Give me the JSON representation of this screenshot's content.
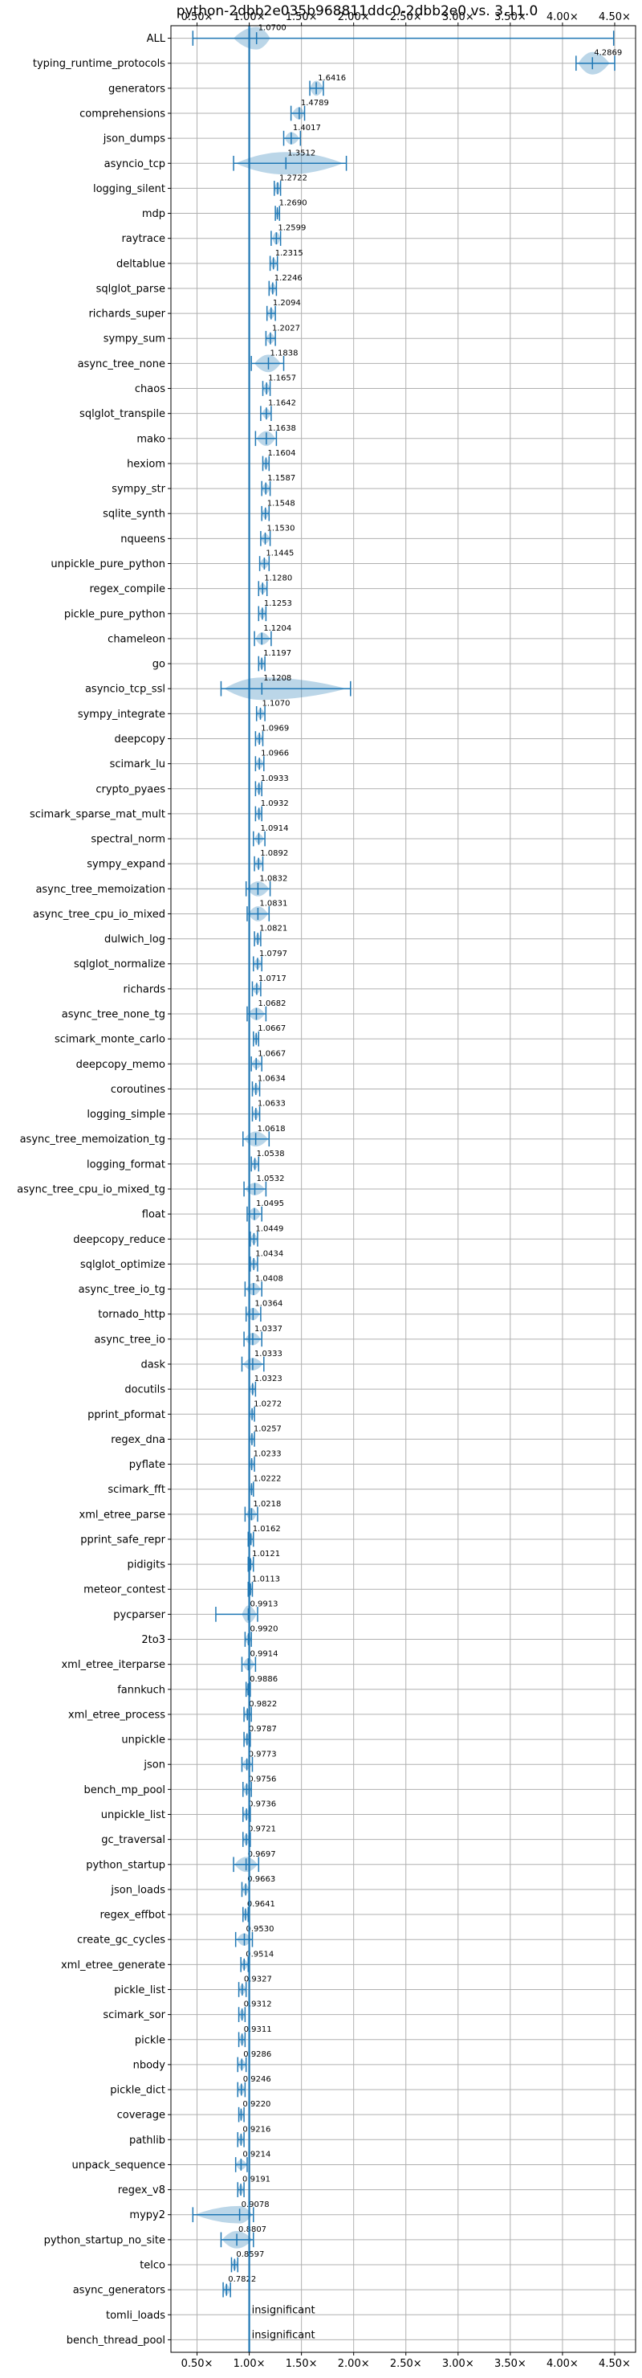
{
  "chart_data": {
    "type": "violin",
    "title": "python-2dbb2e035b968811ddc0-2dbb2e0 vs. 3.11.0",
    "xticks": [
      0.5,
      1.0,
      1.5,
      2.0,
      2.5,
      3.0,
      3.5,
      4.0,
      4.5
    ],
    "xtick_labels": [
      "0.50×",
      "1.00×",
      "1.50×",
      "2.00×",
      "2.50×",
      "3.00×",
      "3.50×",
      "4.00×",
      "4.50×"
    ],
    "xlim": [
      0.25,
      4.7
    ],
    "reference_line": 1.0,
    "grid": true,
    "insignificant_label": "insignificant",
    "benchmarks": [
      {
        "name": "ALL",
        "value": 1.07,
        "label": "1.0700",
        "min": 0.46,
        "max": 4.49,
        "vlo": 0.85,
        "vhi": 1.2,
        "vw": 0.9
      },
      {
        "name": "typing_runtime_protocols",
        "value": 4.2869,
        "label": "4.2869",
        "min": 4.13,
        "max": 4.5,
        "vlo": 4.15,
        "vhi": 4.45,
        "vw": 0.9
      },
      {
        "name": "generators",
        "value": 1.6416,
        "label": "1.6416",
        "min": 1.58,
        "max": 1.71,
        "vlo": 1.58,
        "vhi": 1.71,
        "vw": 0.6
      },
      {
        "name": "comprehensions",
        "value": 1.4789,
        "label": "1.4789",
        "min": 1.4,
        "max": 1.53,
        "vlo": 1.41,
        "vhi": 1.53,
        "vw": 0.5
      },
      {
        "name": "json_dumps",
        "value": 1.4017,
        "label": "1.4017",
        "min": 1.33,
        "max": 1.49,
        "vlo": 1.34,
        "vhi": 1.48,
        "vw": 0.5
      },
      {
        "name": "asyncio_tcp",
        "value": 1.3512,
        "label": "1.3512",
        "min": 0.85,
        "max": 1.93,
        "vlo": 0.87,
        "vhi": 1.9,
        "vw": 0.9
      },
      {
        "name": "logging_silent",
        "value": 1.2722,
        "label": "1.2722",
        "min": 1.24,
        "max": 1.3,
        "vlo": 1.24,
        "vhi": 1.3,
        "vw": 0.5
      },
      {
        "name": "mdp",
        "value": 1.269,
        "label": "1.2690",
        "min": 1.25,
        "max": 1.29,
        "vlo": 1.25,
        "vhi": 1.29,
        "vw": 0.4
      },
      {
        "name": "raytrace",
        "value": 1.2599,
        "label": "1.2599",
        "min": 1.21,
        "max": 1.3,
        "vlo": 1.22,
        "vhi": 1.3,
        "vw": 0.5
      },
      {
        "name": "deltablue",
        "value": 1.2315,
        "label": "1.2315",
        "min": 1.2,
        "max": 1.27,
        "vlo": 1.2,
        "vhi": 1.27,
        "vw": 0.4
      },
      {
        "name": "sqlglot_parse",
        "value": 1.2246,
        "label": "1.2246",
        "min": 1.19,
        "max": 1.26,
        "vlo": 1.19,
        "vhi": 1.26,
        "vw": 0.4
      },
      {
        "name": "richards_super",
        "value": 1.2094,
        "label": "1.2094",
        "min": 1.17,
        "max": 1.25,
        "vlo": 1.17,
        "vhi": 1.25,
        "vw": 0.4
      },
      {
        "name": "sympy_sum",
        "value": 1.2027,
        "label": "1.2027",
        "min": 1.16,
        "max": 1.25,
        "vlo": 1.16,
        "vhi": 1.25,
        "vw": 0.4
      },
      {
        "name": "async_tree_none",
        "value": 1.1838,
        "label": "1.1838",
        "min": 1.02,
        "max": 1.33,
        "vlo": 1.05,
        "vhi": 1.3,
        "vw": 0.7
      },
      {
        "name": "chaos",
        "value": 1.1657,
        "label": "1.1657",
        "min": 1.13,
        "max": 1.2,
        "vlo": 1.13,
        "vhi": 1.2,
        "vw": 0.4
      },
      {
        "name": "sqlglot_transpile",
        "value": 1.1642,
        "label": "1.1642",
        "min": 1.11,
        "max": 1.21,
        "vlo": 1.12,
        "vhi": 1.21,
        "vw": 0.4
      },
      {
        "name": "mako",
        "value": 1.1638,
        "label": "1.1638",
        "min": 1.06,
        "max": 1.26,
        "vlo": 1.07,
        "vhi": 1.25,
        "vw": 0.6
      },
      {
        "name": "hexiom",
        "value": 1.1604,
        "label": "1.1604",
        "min": 1.13,
        "max": 1.19,
        "vlo": 1.13,
        "vhi": 1.19,
        "vw": 0.4
      },
      {
        "name": "sympy_str",
        "value": 1.1587,
        "label": "1.1587",
        "min": 1.12,
        "max": 1.2,
        "vlo": 1.12,
        "vhi": 1.2,
        "vw": 0.4
      },
      {
        "name": "sqlite_synth",
        "value": 1.1548,
        "label": "1.1548",
        "min": 1.12,
        "max": 1.19,
        "vlo": 1.12,
        "vhi": 1.19,
        "vw": 0.4
      },
      {
        "name": "nqueens",
        "value": 1.153,
        "label": "1.1530",
        "min": 1.11,
        "max": 1.2,
        "vlo": 1.11,
        "vhi": 1.2,
        "vw": 0.4
      },
      {
        "name": "unpickle_pure_python",
        "value": 1.1445,
        "label": "1.1445",
        "min": 1.1,
        "max": 1.19,
        "vlo": 1.1,
        "vhi": 1.19,
        "vw": 0.4
      },
      {
        "name": "regex_compile",
        "value": 1.128,
        "label": "1.1280",
        "min": 1.09,
        "max": 1.17,
        "vlo": 1.09,
        "vhi": 1.17,
        "vw": 0.4
      },
      {
        "name": "pickle_pure_python",
        "value": 1.1253,
        "label": "1.1253",
        "min": 1.09,
        "max": 1.16,
        "vlo": 1.09,
        "vhi": 1.16,
        "vw": 0.4
      },
      {
        "name": "chameleon",
        "value": 1.1204,
        "label": "1.1204",
        "min": 1.05,
        "max": 1.21,
        "vlo": 1.06,
        "vhi": 1.2,
        "vw": 0.5
      },
      {
        "name": "go",
        "value": 1.1197,
        "label": "1.1197",
        "min": 1.09,
        "max": 1.15,
        "vlo": 1.09,
        "vhi": 1.15,
        "vw": 0.4
      },
      {
        "name": "asyncio_tcp_ssl",
        "value": 1.1208,
        "label": "1.1208",
        "min": 0.73,
        "max": 1.97,
        "vlo": 0.76,
        "vhi": 1.93,
        "vw": 0.9
      },
      {
        "name": "sympy_integrate",
        "value": 1.107,
        "label": "1.1070",
        "min": 1.07,
        "max": 1.15,
        "vlo": 1.07,
        "vhi": 1.15,
        "vw": 0.4
      },
      {
        "name": "deepcopy",
        "value": 1.0969,
        "label": "1.0969",
        "min": 1.06,
        "max": 1.13,
        "vlo": 1.06,
        "vhi": 1.13,
        "vw": 0.4
      },
      {
        "name": "scimark_lu",
        "value": 1.0966,
        "label": "1.0966",
        "min": 1.06,
        "max": 1.14,
        "vlo": 1.06,
        "vhi": 1.14,
        "vw": 0.4
      },
      {
        "name": "crypto_pyaes",
        "value": 1.0933,
        "label": "1.0933",
        "min": 1.06,
        "max": 1.12,
        "vlo": 1.06,
        "vhi": 1.12,
        "vw": 0.4
      },
      {
        "name": "scimark_sparse_mat_mult",
        "value": 1.0932,
        "label": "1.0932",
        "min": 1.06,
        "max": 1.12,
        "vlo": 1.06,
        "vhi": 1.12,
        "vw": 0.4
      },
      {
        "name": "spectral_norm",
        "value": 1.0914,
        "label": "1.0914",
        "min": 1.04,
        "max": 1.15,
        "vlo": 1.05,
        "vhi": 1.14,
        "vw": 0.4
      },
      {
        "name": "sympy_expand",
        "value": 1.0892,
        "label": "1.0892",
        "min": 1.05,
        "max": 1.13,
        "vlo": 1.05,
        "vhi": 1.13,
        "vw": 0.4
      },
      {
        "name": "async_tree_memoization",
        "value": 1.0832,
        "label": "1.0832",
        "min": 0.97,
        "max": 1.2,
        "vlo": 0.98,
        "vhi": 1.19,
        "vw": 0.6
      },
      {
        "name": "async_tree_cpu_io_mixed",
        "value": 1.0831,
        "label": "1.0831",
        "min": 0.98,
        "max": 1.19,
        "vlo": 0.99,
        "vhi": 1.18,
        "vw": 0.6
      },
      {
        "name": "dulwich_log",
        "value": 1.0821,
        "label": "1.0821",
        "min": 1.05,
        "max": 1.11,
        "vlo": 1.05,
        "vhi": 1.11,
        "vw": 0.4
      },
      {
        "name": "sqlglot_normalize",
        "value": 1.0797,
        "label": "1.0797",
        "min": 1.04,
        "max": 1.12,
        "vlo": 1.04,
        "vhi": 1.12,
        "vw": 0.4
      },
      {
        "name": "richards",
        "value": 1.0717,
        "label": "1.0717",
        "min": 1.03,
        "max": 1.11,
        "vlo": 1.03,
        "vhi": 1.11,
        "vw": 0.4
      },
      {
        "name": "async_tree_none_tg",
        "value": 1.0682,
        "label": "1.0682",
        "min": 0.98,
        "max": 1.16,
        "vlo": 0.99,
        "vhi": 1.15,
        "vw": 0.5
      },
      {
        "name": "scimark_monte_carlo",
        "value": 1.0667,
        "label": "1.0667",
        "min": 1.04,
        "max": 1.09,
        "vlo": 1.04,
        "vhi": 1.09,
        "vw": 0.4
      },
      {
        "name": "deepcopy_memo",
        "value": 1.0667,
        "label": "1.0667",
        "min": 1.02,
        "max": 1.12,
        "vlo": 1.02,
        "vhi": 1.12,
        "vw": 0.4
      },
      {
        "name": "coroutines",
        "value": 1.0634,
        "label": "1.0634",
        "min": 1.03,
        "max": 1.1,
        "vlo": 1.03,
        "vhi": 1.1,
        "vw": 0.4
      },
      {
        "name": "logging_simple",
        "value": 1.0633,
        "label": "1.0633",
        "min": 1.03,
        "max": 1.1,
        "vlo": 1.03,
        "vhi": 1.1,
        "vw": 0.4
      },
      {
        "name": "async_tree_memoization_tg",
        "value": 1.0618,
        "label": "1.0618",
        "min": 0.94,
        "max": 1.19,
        "vlo": 0.95,
        "vhi": 1.18,
        "vw": 0.6
      },
      {
        "name": "logging_format",
        "value": 1.0538,
        "label": "1.0538",
        "min": 1.02,
        "max": 1.09,
        "vlo": 1.02,
        "vhi": 1.09,
        "vw": 0.4
      },
      {
        "name": "async_tree_cpu_io_mixed_tg",
        "value": 1.0532,
        "label": "1.0532",
        "min": 0.95,
        "max": 1.16,
        "vlo": 0.96,
        "vhi": 1.15,
        "vw": 0.5
      },
      {
        "name": "float",
        "value": 1.0495,
        "label": "1.0495",
        "min": 0.98,
        "max": 1.12,
        "vlo": 0.99,
        "vhi": 1.11,
        "vw": 0.5
      },
      {
        "name": "deepcopy_reduce",
        "value": 1.0449,
        "label": "1.0449",
        "min": 1.01,
        "max": 1.08,
        "vlo": 1.01,
        "vhi": 1.08,
        "vw": 0.4
      },
      {
        "name": "sqlglot_optimize",
        "value": 1.0434,
        "label": "1.0434",
        "min": 1.01,
        "max": 1.08,
        "vlo": 1.01,
        "vhi": 1.08,
        "vw": 0.4
      },
      {
        "name": "async_tree_io_tg",
        "value": 1.0408,
        "label": "1.0408",
        "min": 0.96,
        "max": 1.12,
        "vlo": 0.97,
        "vhi": 1.11,
        "vw": 0.5
      },
      {
        "name": "tornado_http",
        "value": 1.0364,
        "label": "1.0364",
        "min": 0.97,
        "max": 1.11,
        "vlo": 0.97,
        "vhi": 1.1,
        "vw": 0.5
      },
      {
        "name": "async_tree_io",
        "value": 1.0337,
        "label": "1.0337",
        "min": 0.95,
        "max": 1.12,
        "vlo": 0.96,
        "vhi": 1.11,
        "vw": 0.5
      },
      {
        "name": "dask",
        "value": 1.0333,
        "label": "1.0333",
        "min": 0.93,
        "max": 1.14,
        "vlo": 0.94,
        "vhi": 1.13,
        "vw": 0.5
      },
      {
        "name": "docutils",
        "value": 1.0323,
        "label": "1.0323",
        "min": 1.0,
        "max": 1.06,
        "vlo": 1.0,
        "vhi": 1.06,
        "vw": 0.4
      },
      {
        "name": "pprint_pformat",
        "value": 1.0272,
        "label": "1.0272",
        "min": 1.0,
        "max": 1.05,
        "vlo": 1.0,
        "vhi": 1.05,
        "vw": 0.4
      },
      {
        "name": "regex_dna",
        "value": 1.0257,
        "label": "1.0257",
        "min": 1.0,
        "max": 1.05,
        "vlo": 1.0,
        "vhi": 1.05,
        "vw": 0.4
      },
      {
        "name": "pyflate",
        "value": 1.0233,
        "label": "1.0233",
        "min": 1.0,
        "max": 1.05,
        "vlo": 1.0,
        "vhi": 1.05,
        "vw": 0.4
      },
      {
        "name": "scimark_fft",
        "value": 1.0222,
        "label": "1.0222",
        "min": 1.0,
        "max": 1.04,
        "vlo": 1.0,
        "vhi": 1.04,
        "vw": 0.4
      },
      {
        "name": "xml_etree_parse",
        "value": 1.0218,
        "label": "1.0218",
        "min": 0.96,
        "max": 1.08,
        "vlo": 0.97,
        "vhi": 1.07,
        "vw": 0.5
      },
      {
        "name": "pprint_safe_repr",
        "value": 1.0162,
        "label": "1.0162",
        "min": 0.99,
        "max": 1.04,
        "vlo": 0.99,
        "vhi": 1.04,
        "vw": 0.4
      },
      {
        "name": "pidigits",
        "value": 1.0121,
        "label": "1.0121",
        "min": 0.99,
        "max": 1.04,
        "vlo": 0.99,
        "vhi": 1.04,
        "vw": 0.4
      },
      {
        "name": "meteor_contest",
        "value": 1.0113,
        "label": "1.0113",
        "min": 0.99,
        "max": 1.03,
        "vlo": 0.99,
        "vhi": 1.03,
        "vw": 0.4
      },
      {
        "name": "pycparser",
        "value": 0.9913,
        "label": "0.9913",
        "min": 0.68,
        "max": 1.08,
        "vlo": 0.93,
        "vhi": 1.07,
        "vw": 0.7
      },
      {
        "name": "2to3",
        "value": 0.992,
        "label": "0.9920",
        "min": 0.96,
        "max": 1.02,
        "vlo": 0.96,
        "vhi": 1.02,
        "vw": 0.4
      },
      {
        "name": "xml_etree_iterparse",
        "value": 0.9914,
        "label": "0.9914",
        "min": 0.93,
        "max": 1.06,
        "vlo": 0.94,
        "vhi": 1.05,
        "vw": 0.5
      },
      {
        "name": "fannkuch",
        "value": 0.9886,
        "label": "0.9886",
        "min": 0.97,
        "max": 1.01,
        "vlo": 0.97,
        "vhi": 1.01,
        "vw": 0.4
      },
      {
        "name": "xml_etree_process",
        "value": 0.9822,
        "label": "0.9822",
        "min": 0.95,
        "max": 1.02,
        "vlo": 0.95,
        "vhi": 1.02,
        "vw": 0.4
      },
      {
        "name": "unpickle",
        "value": 0.9787,
        "label": "0.9787",
        "min": 0.95,
        "max": 1.01,
        "vlo": 0.95,
        "vhi": 1.01,
        "vw": 0.4
      },
      {
        "name": "json",
        "value": 0.9773,
        "label": "0.9773",
        "min": 0.93,
        "max": 1.03,
        "vlo": 0.93,
        "vhi": 1.03,
        "vw": 0.4
      },
      {
        "name": "bench_mp_pool",
        "value": 0.9756,
        "label": "0.9756",
        "min": 0.94,
        "max": 1.02,
        "vlo": 0.94,
        "vhi": 1.02,
        "vw": 0.4
      },
      {
        "name": "unpickle_list",
        "value": 0.9736,
        "label": "0.9736",
        "min": 0.94,
        "max": 1.01,
        "vlo": 0.94,
        "vhi": 1.01,
        "vw": 0.4
      },
      {
        "name": "gc_traversal",
        "value": 0.9721,
        "label": "0.9721",
        "min": 0.94,
        "max": 1.01,
        "vlo": 0.94,
        "vhi": 1.01,
        "vw": 0.4
      },
      {
        "name": "python_startup",
        "value": 0.9697,
        "label": "0.9697",
        "min": 0.85,
        "max": 1.09,
        "vlo": 0.86,
        "vhi": 1.08,
        "vw": 0.6
      },
      {
        "name": "json_loads",
        "value": 0.9663,
        "label": "0.9663",
        "min": 0.93,
        "max": 1.0,
        "vlo": 0.93,
        "vhi": 1.0,
        "vw": 0.4
      },
      {
        "name": "regex_effbot",
        "value": 0.9641,
        "label": "0.9641",
        "min": 0.94,
        "max": 0.99,
        "vlo": 0.94,
        "vhi": 0.99,
        "vw": 0.4
      },
      {
        "name": "create_gc_cycles",
        "value": 0.953,
        "label": "0.9530",
        "min": 0.87,
        "max": 1.03,
        "vlo": 0.88,
        "vhi": 1.02,
        "vw": 0.5
      },
      {
        "name": "xml_etree_generate",
        "value": 0.9514,
        "label": "0.9514",
        "min": 0.92,
        "max": 0.99,
        "vlo": 0.92,
        "vhi": 0.99,
        "vw": 0.4
      },
      {
        "name": "pickle_list",
        "value": 0.9327,
        "label": "0.9327",
        "min": 0.9,
        "max": 0.97,
        "vlo": 0.9,
        "vhi": 0.97,
        "vw": 0.4
      },
      {
        "name": "scimark_sor",
        "value": 0.9312,
        "label": "0.9312",
        "min": 0.9,
        "max": 0.96,
        "vlo": 0.9,
        "vhi": 0.96,
        "vw": 0.4
      },
      {
        "name": "pickle",
        "value": 0.9311,
        "label": "0.9311",
        "min": 0.9,
        "max": 0.96,
        "vlo": 0.9,
        "vhi": 0.96,
        "vw": 0.4
      },
      {
        "name": "nbody",
        "value": 0.9286,
        "label": "0.9286",
        "min": 0.89,
        "max": 0.97,
        "vlo": 0.89,
        "vhi": 0.97,
        "vw": 0.4
      },
      {
        "name": "pickle_dict",
        "value": 0.9246,
        "label": "0.9246",
        "min": 0.89,
        "max": 0.96,
        "vlo": 0.89,
        "vhi": 0.96,
        "vw": 0.4
      },
      {
        "name": "coverage",
        "value": 0.922,
        "label": "0.9220",
        "min": 0.9,
        "max": 0.95,
        "vlo": 0.9,
        "vhi": 0.95,
        "vw": 0.4
      },
      {
        "name": "pathlib",
        "value": 0.9216,
        "label": "0.9216",
        "min": 0.89,
        "max": 0.95,
        "vlo": 0.89,
        "vhi": 0.95,
        "vw": 0.4
      },
      {
        "name": "unpack_sequence",
        "value": 0.9214,
        "label": "0.9214",
        "min": 0.87,
        "max": 0.98,
        "vlo": 0.87,
        "vhi": 0.98,
        "vw": 0.4
      },
      {
        "name": "regex_v8",
        "value": 0.9191,
        "label": "0.9191",
        "min": 0.89,
        "max": 0.95,
        "vlo": 0.89,
        "vhi": 0.95,
        "vw": 0.4
      },
      {
        "name": "mypy2",
        "value": 0.9078,
        "label": "0.9078",
        "min": 0.46,
        "max": 1.04,
        "vlo": 0.48,
        "vhi": 1.03,
        "vw": 0.7
      },
      {
        "name": "python_startup_no_site",
        "value": 0.8807,
        "label": "0.8807",
        "min": 0.73,
        "max": 1.04,
        "vlo": 0.74,
        "vhi": 1.03,
        "vw": 0.7
      },
      {
        "name": "telco",
        "value": 0.8597,
        "label": "0.8597",
        "min": 0.83,
        "max": 0.89,
        "vlo": 0.83,
        "vhi": 0.89,
        "vw": 0.4
      },
      {
        "name": "async_generators",
        "value": 0.7822,
        "label": "0.7822",
        "min": 0.75,
        "max": 0.82,
        "vlo": 0.75,
        "vhi": 0.82,
        "vw": 0.4
      },
      {
        "name": "tomli_loads",
        "value": null,
        "label": "",
        "insignificant": true
      },
      {
        "name": "bench_thread_pool",
        "value": null,
        "label": "",
        "insignificant": true
      }
    ]
  }
}
